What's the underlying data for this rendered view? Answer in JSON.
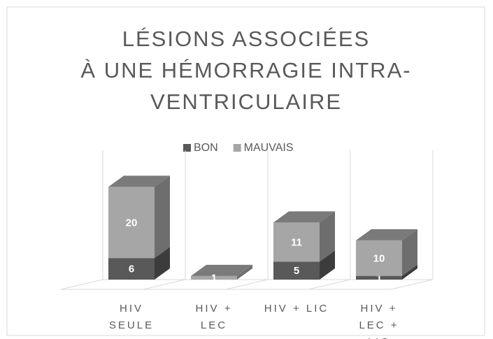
{
  "chart_data": {
    "type": "bar3d_stacked",
    "title": [
      "LÉSIONS ASSOCIÉES",
      "À UNE HÉMORRAGIE INTRA-",
      "VENTRICULAIRE"
    ],
    "categories": [
      "HIV SEULE",
      "HIV + LEC",
      "HIV + LIC",
      "HIV + LEC + LIC"
    ],
    "series": [
      {
        "name": "BON",
        "color": "#595959",
        "side": "#3c3c3c",
        "top": "#4a4a4a",
        "values": [
          6,
          null,
          5,
          1
        ]
      },
      {
        "name": "MAUVAIS",
        "color": "#a6a6a6",
        "side": "#6e6e6e",
        "top": "#7a7a7a",
        "values": [
          20,
          1,
          11,
          10
        ]
      }
    ]
  }
}
